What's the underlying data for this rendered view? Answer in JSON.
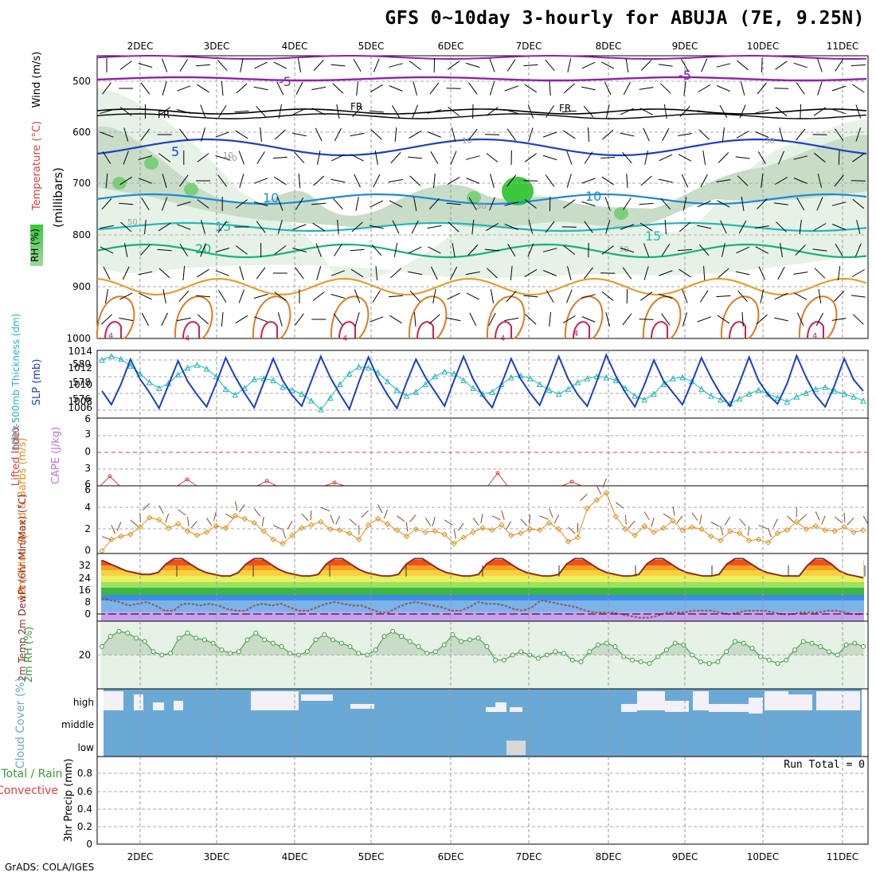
{
  "title": "GFS 0~10day 3-hourly for ABUJA (7E, 9.25N)",
  "credit": "GrADS: COLA/IGES",
  "run_total": "Run Total = 0",
  "date_labels": [
    "2DEC",
    "3DEC",
    "4DEC",
    "5DEC",
    "6DEC",
    "7DEC",
    "8DEC",
    "9DEC",
    "10DEC",
    "11DEC"
  ],
  "colors": {
    "slp": "#1b3fc8",
    "thickness": "#20b8b8",
    "lifted": "#e04040",
    "cape": "#c070e0",
    "wind10": "#e09020",
    "temp": "#8b2a2a",
    "dewpt": "#9a5050",
    "rh": "#3a9a3a",
    "cloud": "#6aa9d6",
    "cloud_gap": "#f4f0f8"
  },
  "panels": {
    "upper": {
      "ylabel_parts": [
        "RH (%)",
        "Temperature (°C)",
        "Wind (m/s)"
      ],
      "yaxis_word": "(millibars)",
      "pressure_ticks": [
        "500",
        "600",
        "700",
        "800",
        "900",
        "1000"
      ],
      "contour_labels": [
        "-5",
        "-5",
        "FR",
        "FR",
        "FR",
        "-5",
        "5",
        "10",
        "10",
        "15",
        "15",
        "20",
        "10",
        "10",
        "30",
        "50",
        "50",
        "30",
        "10",
        "4",
        "4",
        "4",
        "4",
        "4",
        "4"
      ]
    },
    "slp": {
      "ylabel_thick": "1000-500mb Thickness (dm)",
      "ylabel_slp": "SLP (mb)",
      "left_ticks": [
        "580",
        "578",
        "576"
      ],
      "right_ticks": [
        "1014",
        "1012",
        "1010",
        "1008",
        "1006"
      ]
    },
    "li": {
      "ylabel_li": "Lifted Index",
      "ylabel_cape": "CAPE (J/kg)",
      "ticks": [
        "6",
        "3",
        "0",
        "3",
        "6"
      ]
    },
    "wind": {
      "ylabel": "10m Wind Speed & Barbs (m/s)",
      "ticks": [
        "6",
        "4",
        "2",
        "0"
      ]
    },
    "temp": {
      "ylabel": "2m Temp 2m DewPt (6hr Min/Max) (°C)",
      "ticks": [
        "32",
        "24",
        "16",
        "8",
        "0"
      ]
    },
    "rh2m": {
      "ylabel": "2m RH (%)",
      "ticks": [
        "20"
      ]
    },
    "cloud": {
      "ylabel": "Cloud Cover (%)",
      "levels": [
        "high",
        "middle",
        "low"
      ]
    },
    "precip": {
      "ylabel_1": "Total / Rain",
      "ylabel_2": "Convective",
      "ylabel_3": "3hr Precip (mm)",
      "ticks": [
        "0.8",
        "0.6",
        "0.4",
        "0.2",
        "0"
      ]
    }
  },
  "chart_data": [
    {
      "type": "line",
      "name": "SLP",
      "title": "",
      "ylabel": "SLP (mb)",
      "ylim": [
        1005,
        1014
      ],
      "x_start": "2DEC 00Z-ish",
      "series": [
        {
          "name": "SLP",
          "values": [
            1008.6,
            1006.8,
            1009.5,
            1012.8,
            1010.2,
            1008.4,
            1006.3,
            1009.4,
            1012.6,
            1009.9,
            1008.1,
            1006.5,
            1009.6,
            1013.0,
            1010.5,
            1008.3,
            1006.4,
            1009.7,
            1012.9,
            1010.0,
            1008.0,
            1006.6,
            1009.9,
            1013.2,
            1010.4,
            1008.2,
            1006.2,
            1009.8,
            1013.1,
            1010.3,
            1008.1,
            1006.3,
            1009.7,
            1012.8,
            1010.4,
            1008.5,
            1006.6,
            1010.0,
            1013.2,
            1010.2,
            1008.0,
            1006.4,
            1009.6,
            1012.9,
            1010.2,
            1008.3,
            1006.7,
            1009.8,
            1013.2,
            1010.2,
            1008.1,
            1006.6,
            1009.9,
            1013.4,
            1010.6,
            1008.4,
            1006.5,
            1009.4,
            1012.7,
            1010.0,
            1008.4,
            1006.8,
            1009.8,
            1013.0,
            1010.4,
            1008.2,
            1006.6,
            1009.7,
            1013.1,
            1010.0,
            1008.1,
            1006.9,
            1009.6,
            1013.3,
            1010.4,
            1008.0,
            1006.5,
            1009.4,
            1012.9,
            1010.1,
            1008.6
          ]
        }
      ]
    },
    {
      "type": "line",
      "name": "Thickness",
      "ylabel": "1000-500mb Thickness (dm)",
      "ylim": [
        574.5,
        581.5
      ],
      "series": [
        {
          "name": "Thickness",
          "values": [
            580.5,
            580.9,
            580.6,
            579.9,
            579.1,
            578.2,
            577.6,
            578.1,
            579.0,
            579.7,
            580.0,
            579.6,
            578.8,
            577.5,
            576.9,
            577.6,
            578.5,
            578.6,
            578.4,
            577.7,
            577.4,
            577.0,
            576.3,
            575.4,
            576.6,
            578.0,
            579.1,
            579.8,
            579.7,
            579.2,
            578.3,
            577.4,
            576.8,
            577.2,
            578.0,
            578.8,
            579.3,
            579.1,
            578.4,
            577.6,
            577.0,
            577.2,
            578.0,
            578.7,
            578.9,
            578.6,
            578.0,
            577.4,
            577.0,
            577.5,
            578.2,
            578.6,
            578.8,
            578.7,
            578.4,
            577.6,
            576.8,
            576.4,
            577.0,
            578.0,
            578.6,
            578.7,
            578.3,
            577.5,
            576.8,
            576.4,
            576.0,
            576.5,
            577.0,
            577.4,
            577.0,
            576.6,
            576.2,
            576.7,
            577.1,
            577.5,
            577.7,
            577.3,
            577.0,
            576.7,
            576.3
          ]
        }
      ]
    },
    {
      "type": "line",
      "name": "10m Wind Speed",
      "ylabel": "(m/s)",
      "ylim": [
        0,
        6
      ],
      "series": [
        {
          "name": "10m Wind Speed",
          "values": [
            0.1,
            1.2,
            1.5,
            1.7,
            2.4,
            3.3,
            3.1,
            2.3,
            2.7,
            2.0,
            1.6,
            1.9,
            2.5,
            2.3,
            3.5,
            3.2,
            2.8,
            2.0,
            1.2,
            0.8,
            1.6,
            2.3,
            2.6,
            2.9,
            2.2,
            2.1,
            1.8,
            1.2,
            2.6,
            3.2,
            2.7,
            2.1,
            1.5,
            2.2,
            1.9,
            2.0,
            1.7,
            0.8,
            1.4,
            1.9,
            2.3,
            2.1,
            2.6,
            1.6,
            1.8,
            2.2,
            2.1,
            2.8,
            2.2,
            1.0,
            1.4,
            4.2,
            5.0,
            5.7,
            3.4,
            2.2,
            1.6,
            2.5,
            1.9,
            2.3,
            3.0,
            2.1,
            2.4,
            2.2,
            1.5,
            1.1,
            2.0,
            1.8,
            1.1,
            1.2,
            0.9,
            1.8,
            2.1,
            2.9,
            2.2,
            2.5,
            2.1,
            2.0,
            2.4,
            1.9,
            2.1
          ]
        }
      ]
    },
    {
      "type": "line",
      "name": "2m Temp / DewPt",
      "ylabel": "(°C)",
      "ylim": [
        -3,
        36
      ],
      "series": [
        {
          "name": "2m Temp",
          "values": [
            32,
            30,
            28,
            26,
            25,
            24,
            24,
            25,
            30,
            33,
            33,
            30,
            27,
            25,
            24,
            23,
            23,
            25,
            30,
            33,
            33,
            30,
            27,
            25,
            24,
            23,
            23,
            24,
            30,
            33,
            33,
            30,
            27,
            25,
            24,
            23,
            23,
            24,
            30,
            33,
            33,
            30,
            27,
            25,
            24,
            23,
            23,
            24,
            30,
            33,
            33,
            30,
            27,
            25,
            24,
            23,
            23,
            24,
            30,
            33,
            33,
            30,
            27,
            25,
            24,
            23,
            23,
            24,
            30,
            33,
            33,
            30,
            27,
            25,
            24,
            23,
            23,
            24,
            30,
            33,
            33,
            30,
            27,
            25,
            24,
            23,
            23,
            23,
            29,
            33,
            33,
            30,
            26,
            24,
            23,
            22
          ]
        },
        {
          "name": "2m DewPt",
          "values": [
            10,
            9,
            8,
            6,
            7,
            8,
            6,
            3,
            3,
            7,
            7,
            6,
            7,
            6,
            4,
            3,
            3,
            6,
            7,
            6,
            7,
            5,
            3,
            3,
            5,
            7,
            8,
            7,
            6,
            6,
            4,
            2,
            2,
            5,
            7,
            8,
            7,
            6,
            5,
            3,
            3,
            5,
            8,
            7,
            7,
            6,
            4,
            3,
            5,
            9,
            8,
            7,
            6,
            5,
            3,
            2,
            2,
            2,
            1,
            0,
            -1,
            -1,
            0,
            2,
            2,
            2,
            3,
            3,
            3,
            2,
            1,
            2,
            3,
            3,
            3,
            2,
            1,
            1,
            2,
            2,
            2,
            3,
            3,
            2,
            1,
            1
          ]
        }
      ]
    },
    {
      "type": "line",
      "name": "2m RH",
      "ylabel": "(%)",
      "ylim": [
        0,
        40
      ],
      "series": [
        {
          "name": "2m RH",
          "values": [
            25,
            31,
            34,
            33,
            30,
            28,
            22,
            20,
            21,
            30,
            33,
            30,
            29,
            27,
            23,
            21,
            22,
            29,
            33,
            29,
            27,
            25,
            21,
            20,
            22,
            29,
            32,
            29,
            27,
            25,
            21,
            20,
            23,
            31,
            34,
            31,
            28,
            25,
            21,
            22,
            26,
            32,
            28,
            29,
            30,
            25,
            17,
            17,
            20,
            22,
            20,
            18,
            20,
            22,
            21,
            17,
            16,
            22,
            26,
            27,
            25,
            19,
            17,
            16,
            15,
            19,
            23,
            27,
            26,
            20,
            16,
            15,
            16,
            22,
            28,
            27,
            24,
            19,
            17,
            15,
            17,
            23,
            28,
            27,
            25,
            22,
            20,
            26,
            27,
            25
          ]
        }
      ]
    },
    {
      "type": "bar",
      "name": "3hr Precip",
      "ylabel": "3hr Precip (mm)",
      "ylim": [
        0,
        1
      ],
      "series": [
        {
          "name": "3hr Precip",
          "values": []
        }
      ]
    }
  ]
}
